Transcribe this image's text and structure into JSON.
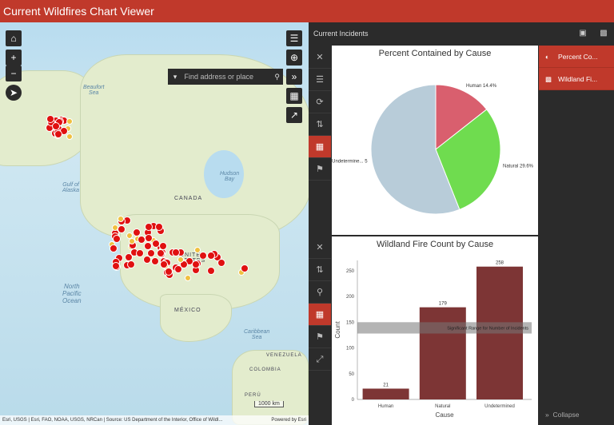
{
  "app": {
    "title": "Current Wildfires Chart Viewer"
  },
  "map": {
    "search_placeholder": "Find address or place",
    "labels": {
      "canada": "CANADA",
      "united_states": "UNITED\nSTATES",
      "mexico": "MÉXICO",
      "hudson_bay": "Hudson\nBay",
      "beaufort_sea": "Beaufort\nSea",
      "gulf_alaska": "Gulf of\nAlaska",
      "north_pacific": "North\nPacific\nOcean",
      "caribbean": "Caribbean\nSea",
      "venezuela": "VENEZUELA",
      "colombia": "COLOMBIA",
      "peru": "PERÚ"
    },
    "scale": "1000 km",
    "attribution": "Esri, USGS | Esri, FAO, NOAA, USGS, NRCan | Source: US Department of the Interior, Office of Wildl...",
    "powered_by": "Powered by Esri"
  },
  "panel": {
    "title": "Current Incidents",
    "legend_items": [
      "Percent Co...",
      "Wildland Fi..."
    ],
    "collapse_label": "Collapse"
  },
  "charts": {
    "pie": {
      "title": "Percent Contained by Cause",
      "labels": {
        "human": "Human 14.4%",
        "natural": "Natural 29.6%",
        "undetermined": "Undetermine... 5"
      }
    },
    "bar": {
      "title": "Wildland Fire Count by Cause",
      "xlabel": "Cause",
      "ylabel": "Count",
      "band_label": "Significant Range for Number of Incidents"
    }
  },
  "chart_data": [
    {
      "type": "pie",
      "title": "Percent Contained by Cause",
      "slices": [
        {
          "name": "Human",
          "value": 14.4,
          "color": "#d95f6e"
        },
        {
          "name": "Natural",
          "value": 29.6,
          "color": "#6fdc4f"
        },
        {
          "name": "Undetermined",
          "value": 56.0,
          "color": "#b8ccd9"
        }
      ]
    },
    {
      "type": "bar",
      "title": "Wildland Fire Count by Cause",
      "categories": [
        "Human",
        "Natural",
        "Undetermined"
      ],
      "values": [
        21,
        179,
        258
      ],
      "xlabel": "Cause",
      "ylabel": "Count",
      "ylim": [
        0,
        270
      ],
      "yticks": [
        0,
        50,
        100,
        150,
        200,
        250
      ],
      "band": {
        "from": 128,
        "to": 150,
        "label": "Significant Range for Number of Incidents"
      },
      "bar_color": "#7d3535"
    }
  ],
  "colors": {
    "accent": "#c0392b",
    "panel_bg": "#2b2b2b",
    "fire": "#e01010"
  }
}
